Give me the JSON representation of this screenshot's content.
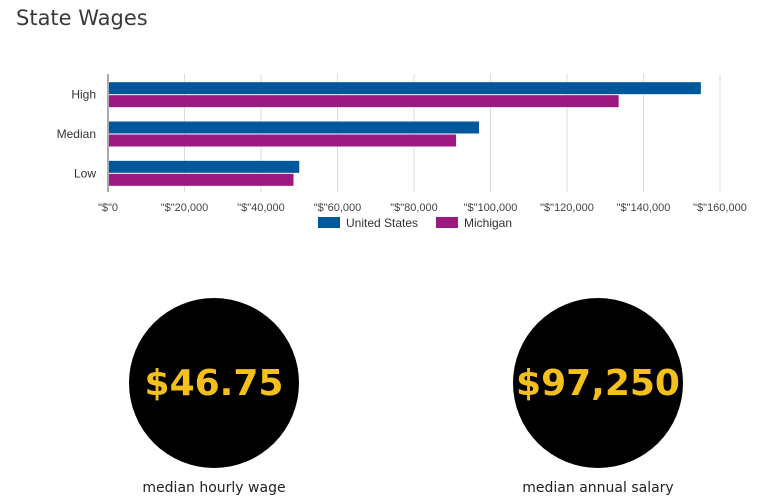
{
  "page": {
    "title": "State Wages"
  },
  "chart_data": {
    "type": "bar",
    "orientation": "horizontal",
    "categories": [
      "High",
      "Median",
      "Low"
    ],
    "series": [
      {
        "name": "United States",
        "color": "#00589c",
        "values": [
          155000,
          97000,
          50000
        ]
      },
      {
        "name": "Michigan",
        "color": "#9c1a80",
        "values": [
          133500,
          91000,
          48500
        ]
      }
    ],
    "xlim": [
      0,
      160000
    ],
    "xticks": [
      0,
      20000,
      40000,
      60000,
      80000,
      100000,
      120000,
      140000,
      160000
    ],
    "xtick_labels": [
      "\"$\"0",
      "\"$\"20,000",
      "\"$\"40,000",
      "\"$\"60,000",
      "\"$\"80,000",
      "\"$\"100,000",
      "\"$\"120,000",
      "\"$\"140,000",
      "\"$\"160,000"
    ],
    "grid": true,
    "legend": "bottom-center"
  },
  "stats": [
    {
      "value": "$46.75",
      "label": "median hourly wage"
    },
    {
      "value": "$97,250",
      "label": "median annual salary"
    }
  ]
}
